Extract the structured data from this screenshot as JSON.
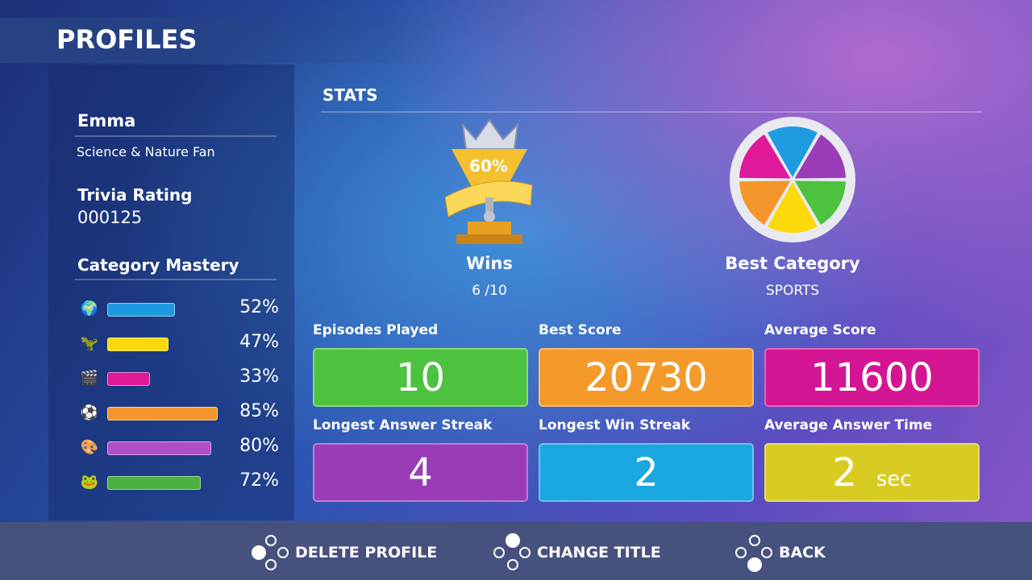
{
  "header": {
    "title": "PROFILES"
  },
  "profile": {
    "name": "Emma",
    "title": "Science & Nature Fan",
    "rating_label": "Trivia Rating",
    "rating_value": "000125"
  },
  "mastery": {
    "label": "Category Mastery",
    "items": [
      {
        "icon": "globe-plane-icon",
        "color": "#1e9be0",
        "percent": 52,
        "label": "52%"
      },
      {
        "icon": "dinosaur-skull-icon",
        "color": "#fdd80a",
        "percent": 47,
        "label": "47%"
      },
      {
        "icon": "clapperboard-icon",
        "color": "#e0189a",
        "percent": 33,
        "label": "33%"
      },
      {
        "icon": "soccer-ball-icon",
        "color": "#f5962c",
        "percent": 85,
        "label": "85%"
      },
      {
        "icon": "palette-icon",
        "color": "#b04fc8",
        "percent": 80,
        "label": "80%"
      },
      {
        "icon": "frog-icon",
        "color": "#4ab040",
        "percent": 72,
        "label": "72%"
      }
    ]
  },
  "stats": {
    "label": "STATS",
    "wins_label": "Wins",
    "wins_pct": "60%",
    "wins_value": "6 /10",
    "best_cat_label": "Best Category",
    "best_cat_value": "SPORTS",
    "tiles": [
      {
        "label": "Episodes Played",
        "value": "10",
        "color": "#4cc23e"
      },
      {
        "label": "Best Score",
        "value": "20730",
        "color": "#f39a2a"
      },
      {
        "label": "Average Score",
        "value": "11600",
        "color": "#d41593"
      },
      {
        "label": "Longest Answer Streak",
        "value": "4",
        "color": "#9a3cb8"
      },
      {
        "label": "Longest Win Streak",
        "value": "2",
        "color": "#1ba8e0"
      },
      {
        "label": "Average Answer Time",
        "value": "2",
        "unit": "sec",
        "color": "#d8cc22"
      }
    ]
  },
  "actions": {
    "delete": "DELETE PROFILE",
    "change": "CHANGE TITLE",
    "back": "BACK"
  }
}
